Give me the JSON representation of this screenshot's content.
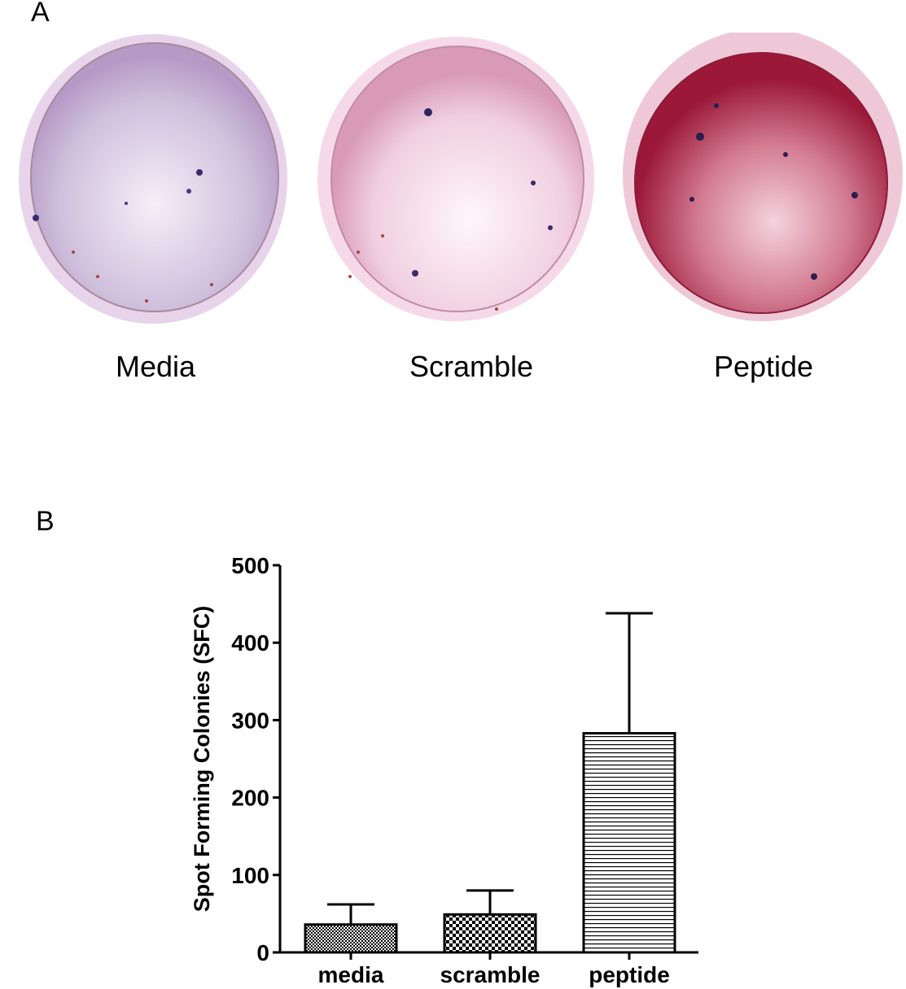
{
  "panel_a": {
    "label": "A",
    "plates": [
      {
        "caption": "Media",
        "tint": "#cdb6d6",
        "spot_density": "low"
      },
      {
        "caption": "Scramble",
        "tint": "#efc4d9",
        "spot_density": "low"
      },
      {
        "caption": "Peptide",
        "tint": "#b5304e",
        "spot_density": "high"
      }
    ]
  },
  "panel_b": {
    "label": "B"
  },
  "chart_data": {
    "type": "bar",
    "title": "",
    "xlabel": "",
    "ylabel": "Spot Forming Colonies (SFC)",
    "categories": [
      "media",
      "scramble",
      "peptide"
    ],
    "values": [
      36,
      49,
      283
    ],
    "error_upper": [
      62,
      80,
      438
    ],
    "error_bar_sd": [
      26,
      31,
      155
    ],
    "ylim": [
      0,
      500
    ],
    "yticks": [
      0,
      100,
      200,
      300,
      400,
      500
    ],
    "bar_patterns": [
      "fine-checker",
      "coarse-checker",
      "horizontal-lines"
    ],
    "grid": false,
    "legend": null
  }
}
